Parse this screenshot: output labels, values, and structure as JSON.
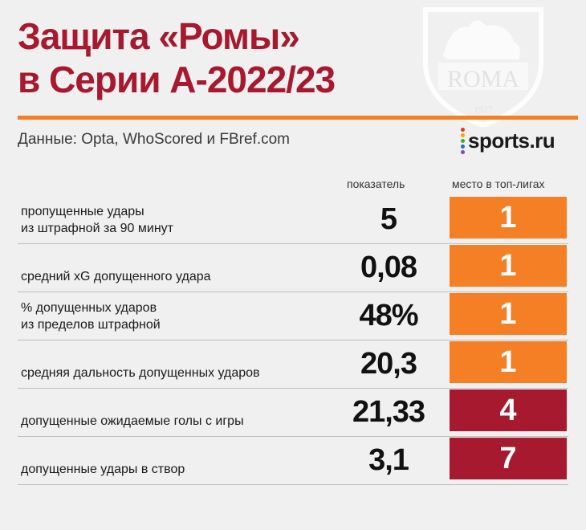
{
  "title_line1": "Защита «Ромы»",
  "title_line2": "в Серии А-2022/23",
  "source": "Данные: Opta, WhoScored и FBref.com",
  "brand": "sports.ru",
  "crest": {
    "text": "ROMA",
    "year": "1927"
  },
  "colors": {
    "title": "#a6192e",
    "rule": "#f47f24",
    "rank_top": "#f47f24",
    "rank_other": "#a6192e",
    "background": "#f0f0f0"
  },
  "chart_data": {
    "type": "table",
    "columns": [
      "показатель",
      "место в топ-лигах"
    ],
    "rows": [
      {
        "label_lines": [
          "пропущенные удары",
          "из штрафной за 90 минут"
        ],
        "value": "5",
        "rank": 1
      },
      {
        "label_lines": [
          "средний xG допущенного удара"
        ],
        "value": "0,08",
        "rank": 1
      },
      {
        "label_lines": [
          "% допущенных ударов",
          "из пределов штрафной"
        ],
        "value": "48%",
        "rank": 1
      },
      {
        "label_lines": [
          "средняя дальность допущенных ударов"
        ],
        "value": "20,3",
        "rank": 1
      },
      {
        "label_lines": [
          "допущенные ожидаемые голы с игры"
        ],
        "value": "21,33",
        "rank": 4
      },
      {
        "label_lines": [
          "допущенные удары в створ"
        ],
        "value": "3,1",
        "rank": 7
      }
    ]
  }
}
